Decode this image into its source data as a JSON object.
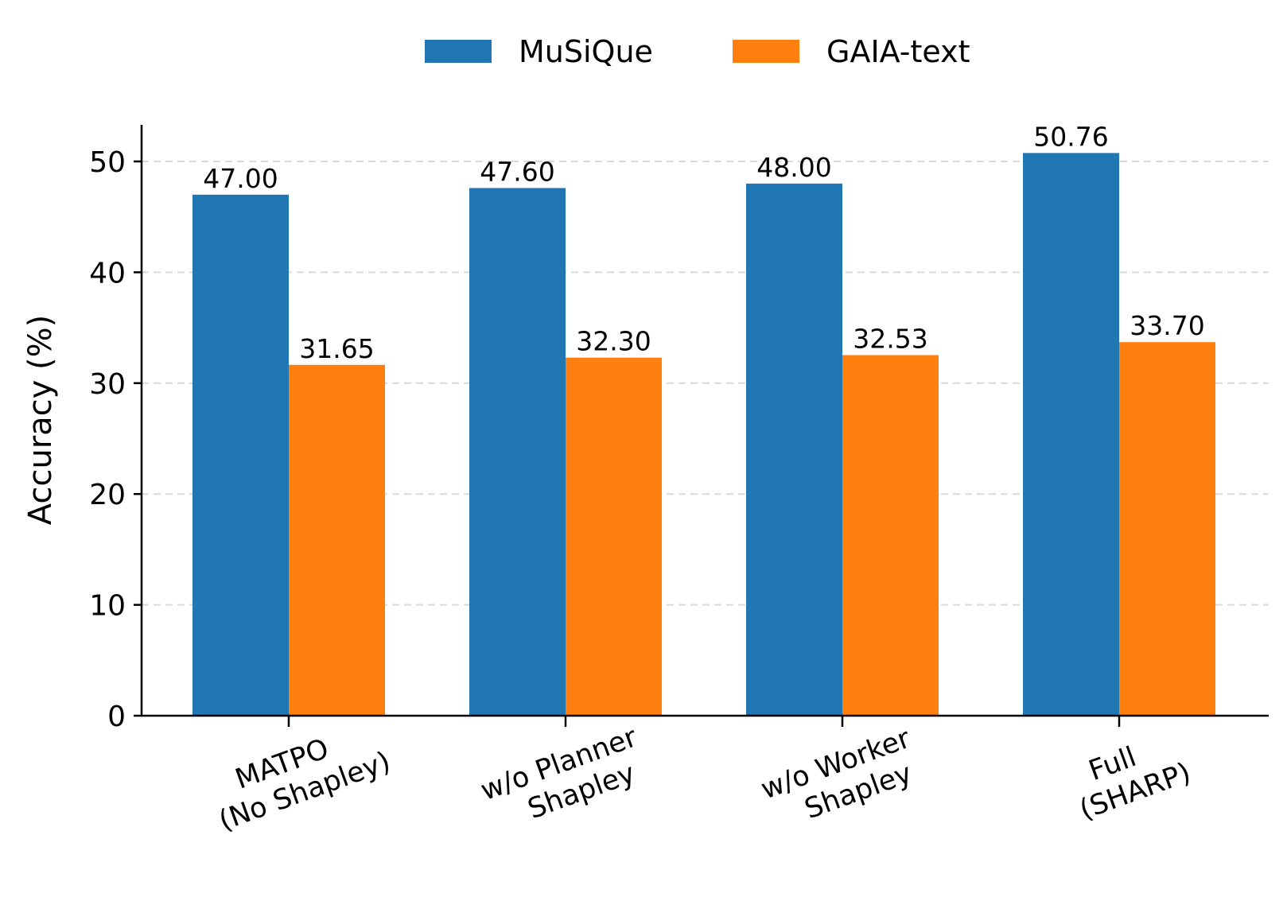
{
  "chart_data": {
    "type": "bar",
    "categories": [
      [
        "MATPO",
        "(No Shapley)"
      ],
      [
        "w/o Planner",
        "Shapley"
      ],
      [
        "w/o Worker",
        "Shapley"
      ],
      [
        "Full",
        "(SHARP)"
      ]
    ],
    "series": [
      {
        "name": "MuSiQue",
        "color": "#2077b4",
        "values": [
          47.0,
          47.6,
          48.0,
          50.76
        ],
        "labels": [
          "47.00",
          "47.60",
          "48.00",
          "50.76"
        ]
      },
      {
        "name": "GAIA-text",
        "color": "#ff7f0e",
        "values": [
          31.65,
          32.3,
          32.53,
          33.7
        ],
        "labels": [
          "31.65",
          "32.30",
          "32.53",
          "33.70"
        ]
      }
    ],
    "xlabel": "",
    "ylabel": "Accuracy (%)",
    "ylim": [
      0,
      53.3
    ],
    "yticks": [
      0,
      10,
      20,
      30,
      40,
      50
    ],
    "grid": "y-dashed",
    "legend": "top-center"
  }
}
